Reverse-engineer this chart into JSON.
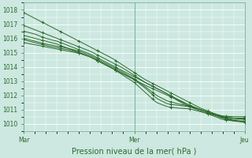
{
  "xlabel": "Pression niveau de la mer( hPa )",
  "xtick_labels": [
    "Mar",
    "Mer",
    "Jeu"
  ],
  "xtick_positions": [
    0.0,
    0.5,
    1.0
  ],
  "ylim": [
    1009.5,
    1018.5
  ],
  "yticks": [
    1010,
    1011,
    1012,
    1013,
    1014,
    1015,
    1016,
    1017,
    1018
  ],
  "bg_color": "#cce8e0",
  "grid_color": "#ffffff",
  "line_color": "#2d6a2d",
  "marker": "+",
  "line_width": 0.7,
  "lines": [
    {
      "x": [
        0.0,
        0.05,
        0.1,
        0.15,
        0.2,
        0.25,
        0.3,
        0.35,
        0.4,
        0.45,
        0.5,
        0.55,
        0.6,
        0.65,
        0.7,
        0.75,
        0.8,
        0.85,
        0.9,
        0.95,
        1.0
      ],
      "y": [
        1017.8,
        1017.4,
        1017.0,
        1016.6,
        1016.2,
        1015.8,
        1015.4,
        1015.0,
        1014.6,
        1014.1,
        1013.6,
        1013.1,
        1012.7,
        1012.3,
        1011.9,
        1011.5,
        1011.1,
        1010.8,
        1010.5,
        1010.4,
        1010.3
      ]
    },
    {
      "x": [
        0.0,
        0.05,
        0.1,
        0.15,
        0.2,
        0.25,
        0.3,
        0.35,
        0.4,
        0.45,
        0.5,
        0.55,
        0.6,
        0.65,
        0.7,
        0.75,
        0.8,
        0.85,
        0.9,
        0.95,
        1.0
      ],
      "y": [
        1016.9,
        1016.6,
        1016.3,
        1016.0,
        1015.7,
        1015.4,
        1015.1,
        1014.7,
        1014.3,
        1013.9,
        1013.4,
        1012.9,
        1012.5,
        1012.1,
        1011.6,
        1011.2,
        1010.9,
        1010.6,
        1010.3,
        1010.2,
        1010.2
      ]
    },
    {
      "x": [
        0.0,
        0.05,
        0.1,
        0.15,
        0.2,
        0.25,
        0.3,
        0.35,
        0.4,
        0.45,
        0.5,
        0.55,
        0.6,
        0.65,
        0.7,
        0.75,
        0.8,
        0.85,
        0.9,
        0.95,
        1.0
      ],
      "y": [
        1016.5,
        1016.3,
        1016.0,
        1015.8,
        1015.5,
        1015.2,
        1014.9,
        1014.5,
        1014.1,
        1013.7,
        1013.3,
        1012.9,
        1012.5,
        1012.1,
        1011.7,
        1011.3,
        1011.0,
        1010.7,
        1010.4,
        1010.25,
        1010.15
      ]
    },
    {
      "x": [
        0.0,
        0.05,
        0.1,
        0.15,
        0.2,
        0.25,
        0.3,
        0.35,
        0.4,
        0.45,
        0.5,
        0.55,
        0.6,
        0.65,
        0.7,
        0.75,
        0.8,
        0.85,
        0.9,
        0.95,
        1.0
      ],
      "y": [
        1016.2,
        1016.0,
        1015.8,
        1015.6,
        1015.3,
        1015.0,
        1014.7,
        1014.3,
        1013.9,
        1013.5,
        1013.1,
        1012.7,
        1012.35,
        1012.0,
        1011.65,
        1011.3,
        1011.0,
        1010.7,
        1010.4,
        1010.2,
        1010.1
      ]
    },
    {
      "x": [
        0.0,
        0.05,
        0.1,
        0.15,
        0.2,
        0.25,
        0.3,
        0.35,
        0.4,
        0.45,
        0.5,
        0.55,
        0.6,
        0.65,
        0.7,
        0.75,
        0.8,
        0.85,
        0.9,
        0.95,
        1.0
      ],
      "y": [
        1015.9,
        1015.7,
        1015.5,
        1015.35,
        1015.2,
        1015.0,
        1014.7,
        1014.3,
        1013.9,
        1013.5,
        1013.1,
        1012.5,
        1011.8,
        1011.4,
        1011.3,
        1011.2,
        1011.0,
        1010.7,
        1010.45,
        1010.3,
        1010.35
      ]
    },
    {
      "x": [
        0.0,
        0.05,
        0.1,
        0.15,
        0.2,
        0.25,
        0.3,
        0.35,
        0.4,
        0.45,
        0.5,
        0.55,
        0.6,
        0.65,
        0.7,
        0.75,
        0.8,
        0.85,
        0.9,
        0.95,
        1.0
      ],
      "y": [
        1015.7,
        1015.55,
        1015.4,
        1015.25,
        1015.1,
        1014.95,
        1014.7,
        1014.3,
        1013.9,
        1013.4,
        1012.9,
        1012.2,
        1011.5,
        1011.2,
        1011.1,
        1011.05,
        1010.85,
        1010.65,
        1010.5,
        1010.4,
        1010.4
      ]
    },
    {
      "x": [
        0.0,
        0.05,
        0.1,
        0.15,
        0.2,
        0.25,
        0.3,
        0.35,
        0.4,
        0.45,
        0.5,
        0.55,
        0.6,
        0.65,
        0.7,
        0.75,
        0.8,
        0.85,
        0.9,
        0.95,
        1.0
      ],
      "y": [
        1016.0,
        1015.8,
        1015.6,
        1015.45,
        1015.3,
        1015.1,
        1014.8,
        1014.4,
        1014.0,
        1013.6,
        1013.15,
        1012.6,
        1012.0,
        1011.6,
        1011.4,
        1011.25,
        1011.0,
        1010.75,
        1010.55,
        1010.5,
        1010.5
      ]
    }
  ]
}
